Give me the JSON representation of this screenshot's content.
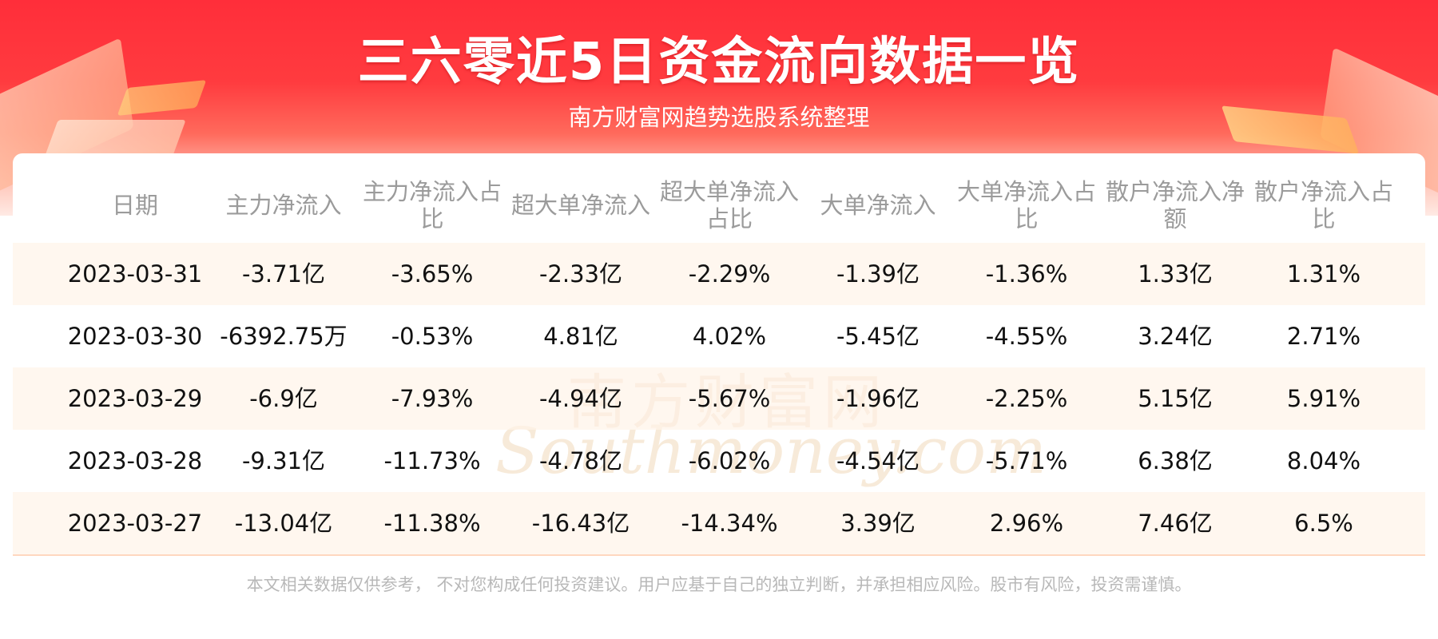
{
  "header": {
    "title": "三六零近5日资金流向数据一览",
    "subtitle": "南方财富网趋势选股系统整理"
  },
  "watermark": {
    "cn": "南方财富网",
    "en": "Southmoney.com"
  },
  "table": {
    "columns": [
      "日期",
      "主力净流入",
      "主力净流入占比",
      "超大单净流入",
      "超大单净流入占比",
      "大单净流入",
      "大单净流入占比",
      "散户净流入净额",
      "散户净流入占比"
    ],
    "rows": [
      [
        "2023-03-31",
        "-3.71亿",
        "-3.65%",
        "-2.33亿",
        "-2.29%",
        "-1.39亿",
        "-1.36%",
        "1.33亿",
        "1.31%"
      ],
      [
        "2023-03-30",
        "-6392.75万",
        "-0.53%",
        "4.81亿",
        "4.02%",
        "-5.45亿",
        "-4.55%",
        "3.24亿",
        "2.71%"
      ],
      [
        "2023-03-29",
        "-6.9亿",
        "-7.93%",
        "-4.94亿",
        "-5.67%",
        "-1.96亿",
        "-2.25%",
        "5.15亿",
        "5.91%"
      ],
      [
        "2023-03-28",
        "-9.31亿",
        "-11.73%",
        "-4.78亿",
        "-6.02%",
        "-4.54亿",
        "-5.71%",
        "6.38亿",
        "8.04%"
      ],
      [
        "2023-03-27",
        "-13.04亿",
        "-11.38%",
        "-16.43亿",
        "-14.34%",
        "3.39亿",
        "2.96%",
        "7.46亿",
        "6.5%"
      ]
    ]
  },
  "footer": {
    "disclaimer": "本文相关数据仅供参考， 不对您构成任何投资建议。用户应基于自己的独立判断，并承担相应风险。股市有风险，投资需谨慎。"
  },
  "colors": {
    "banner_red": "#ff2e3a",
    "header_text": "#9b9b9b",
    "row_stripe": "#fff4e8",
    "divider": "#ffd7bf"
  }
}
